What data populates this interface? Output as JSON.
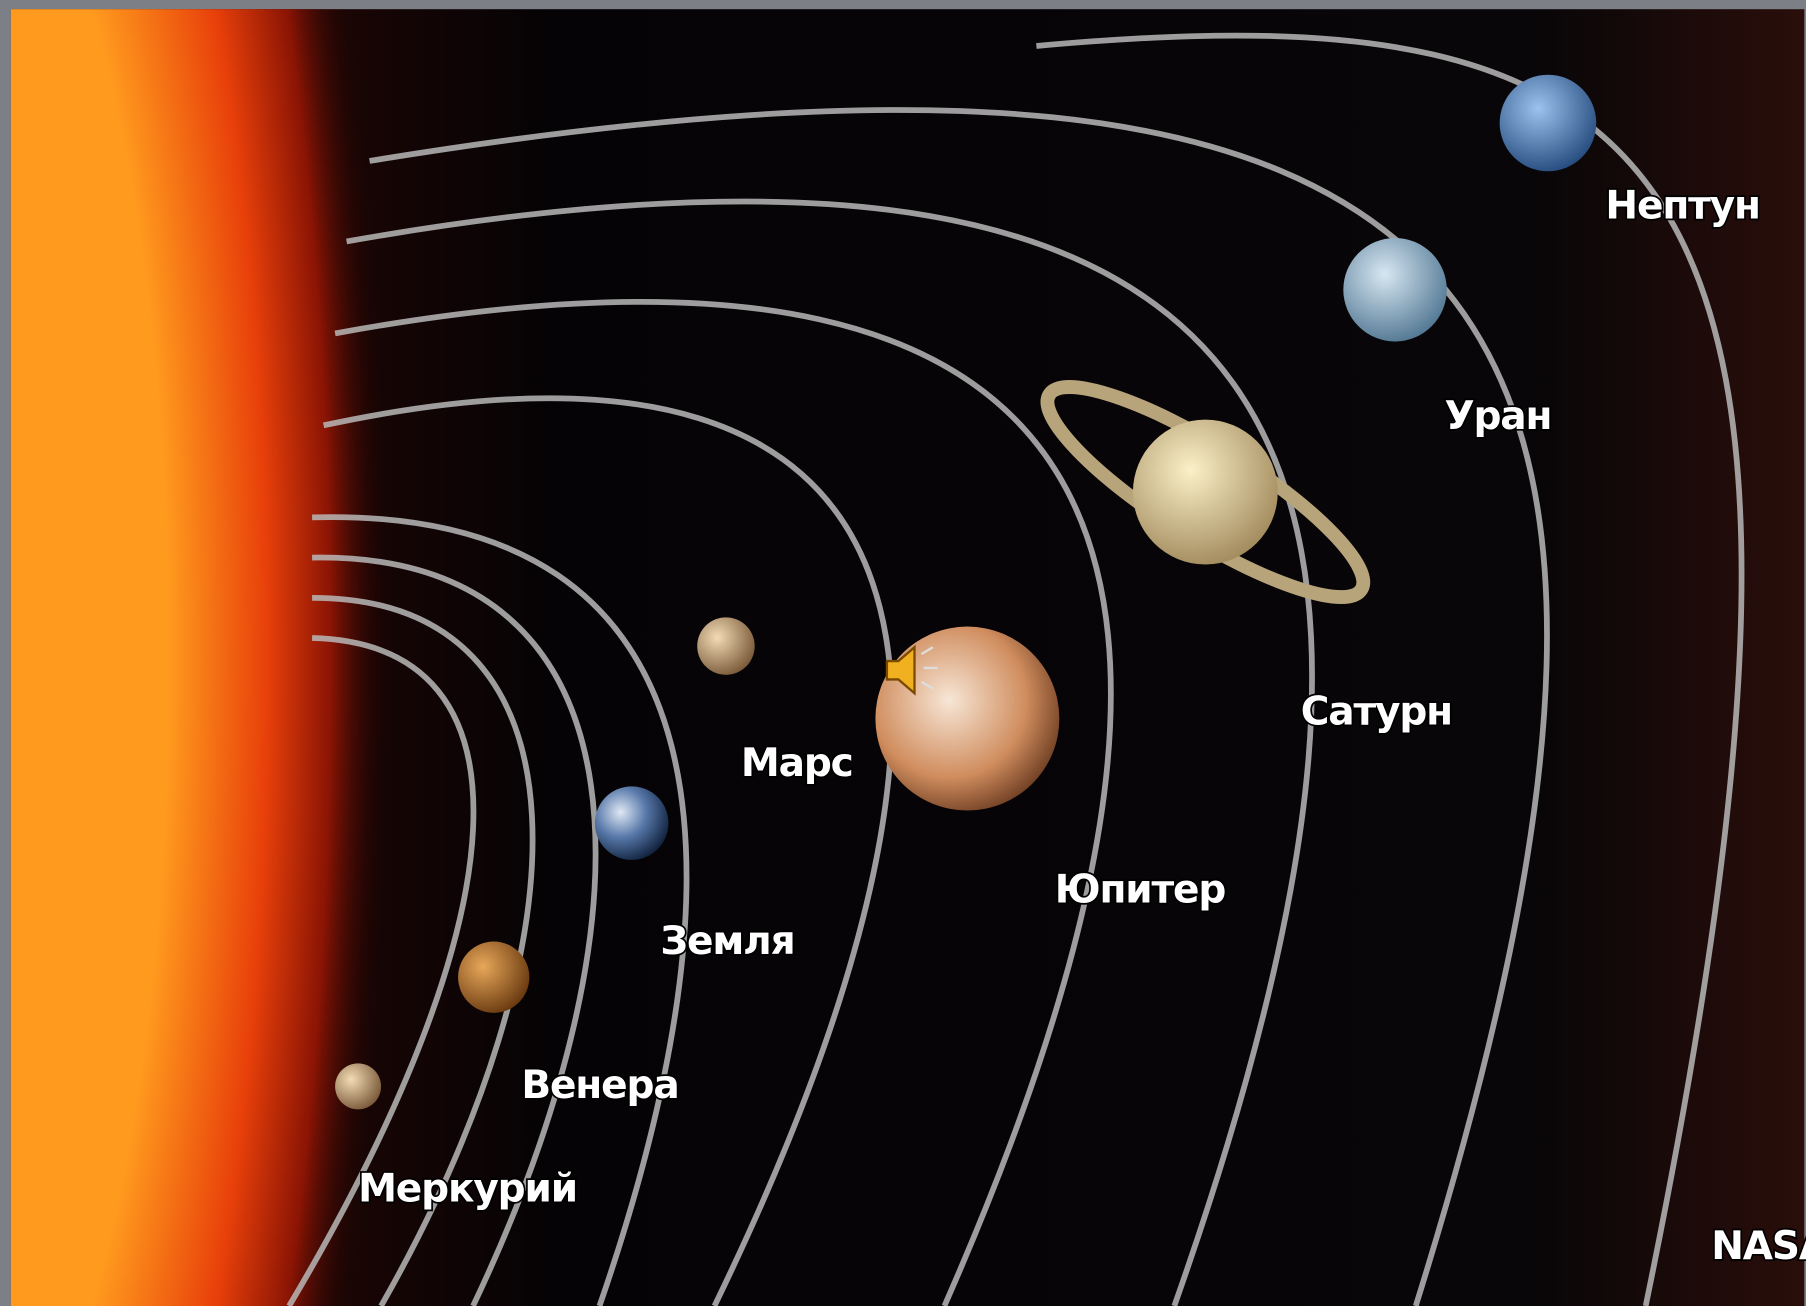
{
  "planets": [
    {
      "label": "Меркурий"
    },
    {
      "label": "Венера"
    },
    {
      "label": "Земля"
    },
    {
      "label": "Марс"
    },
    {
      "label": "Юпитер"
    },
    {
      "label": "Сатурн"
    },
    {
      "label": "Уран"
    },
    {
      "label": "Нептун"
    }
  ],
  "credit": "NASA"
}
